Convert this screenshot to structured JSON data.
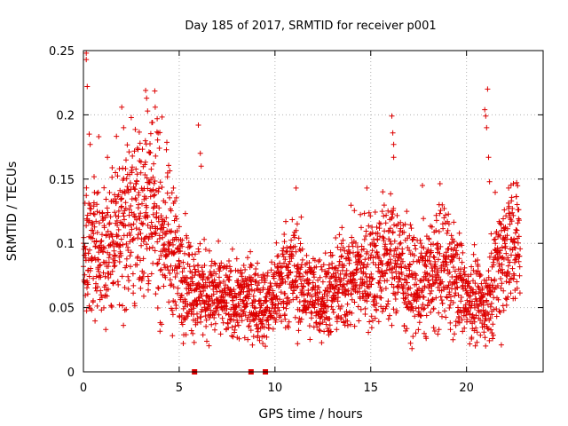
{
  "chart_data": {
    "type": "scatter",
    "title": "Day 185 of 2017, SRMTID for receiver p001",
    "xlabel": "GPS time / hours",
    "ylabel": "SRMTID / TECUs",
    "xlim": [
      0,
      24
    ],
    "ylim": [
      0,
      0.25
    ],
    "grid": true,
    "marker": "+",
    "color": "#dd0000",
    "xticks": [
      0,
      5,
      10,
      15,
      20
    ],
    "xtick_labels": [
      "0",
      "5",
      "10",
      "15",
      "20"
    ],
    "yticks": [
      0,
      0.05,
      0.1,
      0.15,
      0.2,
      0.25
    ],
    "ytick_labels": [
      "0",
      "0.05",
      "0.1",
      "0.15",
      "0.2",
      "0.25"
    ],
    "point_spacing_hours": 0.00833,
    "zero_value_times": [
      5.8,
      8.75,
      9.5
    ],
    "data_extent_hours": [
      0,
      22.8
    ],
    "profile": [
      {
        "x": 0.0,
        "y": 0.085
      },
      {
        "x": 0.5,
        "y": 0.1
      },
      {
        "x": 1.0,
        "y": 0.09
      },
      {
        "x": 1.5,
        "y": 0.1
      },
      {
        "x": 2.0,
        "y": 0.115
      },
      {
        "x": 2.5,
        "y": 0.12
      },
      {
        "x": 3.0,
        "y": 0.13
      },
      {
        "x": 3.5,
        "y": 0.125
      },
      {
        "x": 4.0,
        "y": 0.115
      },
      {
        "x": 4.5,
        "y": 0.1
      },
      {
        "x": 5.0,
        "y": 0.08
      },
      {
        "x": 5.5,
        "y": 0.07
      },
      {
        "x": 6.0,
        "y": 0.065
      },
      {
        "x": 6.5,
        "y": 0.06
      },
      {
        "x": 7.0,
        "y": 0.058
      },
      {
        "x": 7.5,
        "y": 0.055
      },
      {
        "x": 8.0,
        "y": 0.055
      },
      {
        "x": 8.5,
        "y": 0.058
      },
      {
        "x": 9.0,
        "y": 0.055
      },
      {
        "x": 9.5,
        "y": 0.05
      },
      {
        "x": 10.0,
        "y": 0.06
      },
      {
        "x": 10.5,
        "y": 0.075
      },
      {
        "x": 11.0,
        "y": 0.078
      },
      {
        "x": 11.5,
        "y": 0.065
      },
      {
        "x": 12.0,
        "y": 0.06
      },
      {
        "x": 12.5,
        "y": 0.058
      },
      {
        "x": 13.0,
        "y": 0.062
      },
      {
        "x": 13.5,
        "y": 0.07
      },
      {
        "x": 14.0,
        "y": 0.075
      },
      {
        "x": 14.5,
        "y": 0.078
      },
      {
        "x": 15.0,
        "y": 0.08
      },
      {
        "x": 15.5,
        "y": 0.085
      },
      {
        "x": 16.0,
        "y": 0.09
      },
      {
        "x": 16.5,
        "y": 0.085
      },
      {
        "x": 17.0,
        "y": 0.07
      },
      {
        "x": 17.5,
        "y": 0.065
      },
      {
        "x": 18.0,
        "y": 0.072
      },
      {
        "x": 18.5,
        "y": 0.08
      },
      {
        "x": 19.0,
        "y": 0.085
      },
      {
        "x": 19.5,
        "y": 0.07
      },
      {
        "x": 20.0,
        "y": 0.06
      },
      {
        "x": 20.5,
        "y": 0.055
      },
      {
        "x": 21.0,
        "y": 0.05
      },
      {
        "x": 21.5,
        "y": 0.08
      },
      {
        "x": 22.0,
        "y": 0.095
      },
      {
        "x": 22.5,
        "y": 0.1
      },
      {
        "x": 22.8,
        "y": 0.1
      }
    ],
    "outliers": [
      {
        "x": 0.15,
        "y": 0.248
      },
      {
        "x": 0.15,
        "y": 0.243
      },
      {
        "x": 0.2,
        "y": 0.222
      },
      {
        "x": 0.3,
        "y": 0.185
      },
      {
        "x": 0.35,
        "y": 0.177
      },
      {
        "x": 0.8,
        "y": 0.183
      },
      {
        "x": 2.0,
        "y": 0.206
      },
      {
        "x": 2.1,
        "y": 0.19
      },
      {
        "x": 3.25,
        "y": 0.219
      },
      {
        "x": 3.3,
        "y": 0.213
      },
      {
        "x": 3.35,
        "y": 0.203
      },
      {
        "x": 3.75,
        "y": 0.206
      },
      {
        "x": 3.85,
        "y": 0.197
      },
      {
        "x": 3.9,
        "y": 0.186
      },
      {
        "x": 6.0,
        "y": 0.192
      },
      {
        "x": 6.1,
        "y": 0.17
      },
      {
        "x": 6.15,
        "y": 0.16
      },
      {
        "x": 16.1,
        "y": 0.199
      },
      {
        "x": 16.15,
        "y": 0.186
      },
      {
        "x": 16.2,
        "y": 0.177
      },
      {
        "x": 16.2,
        "y": 0.167
      },
      {
        "x": 20.95,
        "y": 0.204
      },
      {
        "x": 21.0,
        "y": 0.199
      },
      {
        "x": 21.05,
        "y": 0.19
      },
      {
        "x": 21.1,
        "y": 0.22
      },
      {
        "x": 21.15,
        "y": 0.167
      },
      {
        "x": 21.2,
        "y": 0.148
      },
      {
        "x": 11.1,
        "y": 0.143
      },
      {
        "x": 14.8,
        "y": 0.143
      },
      {
        "x": 17.7,
        "y": 0.145
      },
      {
        "x": 22.2,
        "y": 0.143
      },
      {
        "x": 4.7,
        "y": 0.143
      }
    ]
  }
}
